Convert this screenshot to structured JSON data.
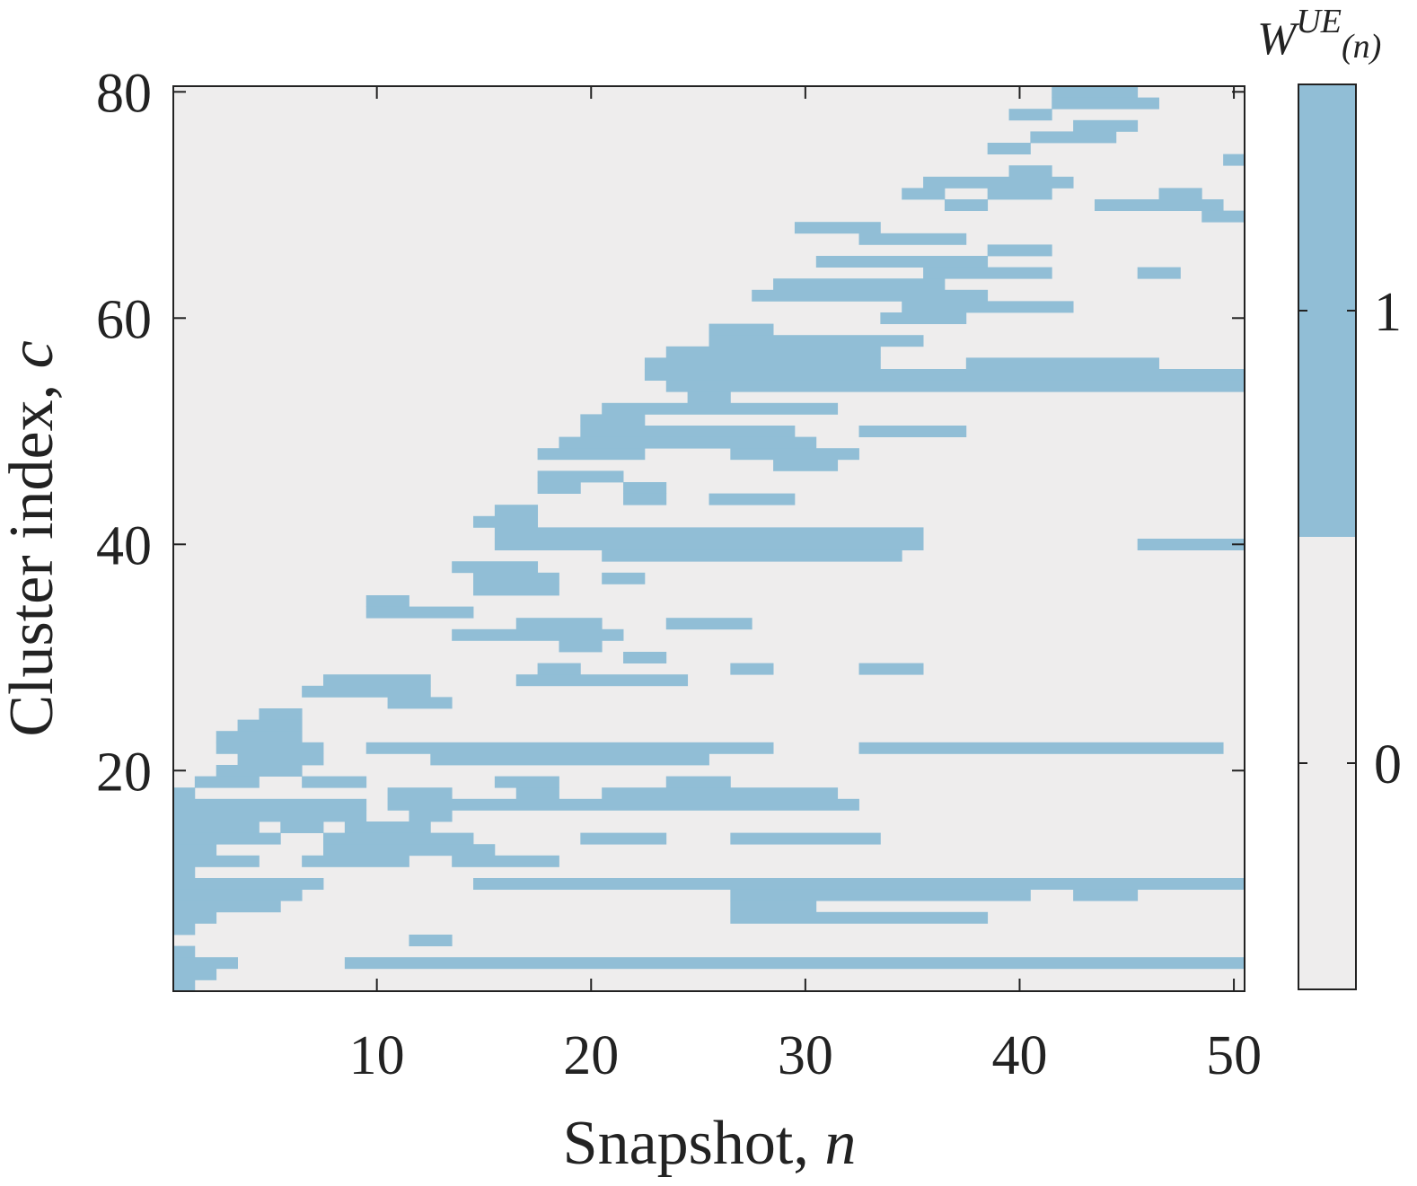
{
  "chart_data": {
    "type": "heatmap",
    "title": "",
    "xlabel": "Snapshot, ",
    "xlabel_var": "n",
    "ylabel": "Cluster index, ",
    "ylabel_var": "c",
    "x_range": [
      1,
      50
    ],
    "y_range": [
      1,
      80
    ],
    "x_ticks": [
      10,
      20,
      30,
      40,
      50
    ],
    "y_ticks": [
      20,
      40,
      60,
      80
    ],
    "colorbar": {
      "label_base": "W",
      "label_sup": "UE",
      "label_arg": "(n)",
      "ticks": [
        0,
        1
      ],
      "levels": [
        0,
        1
      ]
    },
    "colors": {
      "zero": "#eeeded",
      "one": "#91bed6",
      "axis": "#222222"
    },
    "active_cells": [
      {
        "row": 80,
        "runs": [
          [
            42,
            45
          ]
        ]
      },
      {
        "row": 79,
        "runs": [
          [
            42,
            46
          ]
        ]
      },
      {
        "row": 78,
        "runs": [
          [
            40,
            41
          ]
        ]
      },
      {
        "row": 77,
        "runs": [
          [
            43,
            45
          ]
        ]
      },
      {
        "row": 76,
        "runs": [
          [
            41,
            44
          ]
        ]
      },
      {
        "row": 75,
        "runs": [
          [
            39,
            40
          ]
        ]
      },
      {
        "row": 74,
        "runs": [
          [
            50,
            50
          ]
        ]
      },
      {
        "row": 73,
        "runs": [
          [
            40,
            41
          ]
        ]
      },
      {
        "row": 72,
        "runs": [
          [
            36,
            42
          ]
        ]
      },
      {
        "row": 71,
        "runs": [
          [
            35,
            36
          ],
          [
            39,
            41
          ],
          [
            47,
            48
          ]
        ]
      },
      {
        "row": 70,
        "runs": [
          [
            37,
            38
          ],
          [
            44,
            49
          ]
        ]
      },
      {
        "row": 69,
        "runs": [
          [
            49,
            50
          ]
        ]
      },
      {
        "row": 68,
        "runs": [
          [
            30,
            33
          ]
        ]
      },
      {
        "row": 67,
        "runs": [
          [
            33,
            37
          ]
        ]
      },
      {
        "row": 66,
        "runs": [
          [
            39,
            41
          ]
        ]
      },
      {
        "row": 65,
        "runs": [
          [
            31,
            38
          ]
        ]
      },
      {
        "row": 64,
        "runs": [
          [
            36,
            41
          ],
          [
            46,
            47
          ]
        ]
      },
      {
        "row": 63,
        "runs": [
          [
            29,
            36
          ]
        ]
      },
      {
        "row": 62,
        "runs": [
          [
            28,
            38
          ]
        ]
      },
      {
        "row": 61,
        "runs": [
          [
            35,
            42
          ]
        ]
      },
      {
        "row": 60,
        "runs": [
          [
            34,
            37
          ]
        ]
      },
      {
        "row": 59,
        "runs": [
          [
            26,
            28
          ]
        ]
      },
      {
        "row": 58,
        "runs": [
          [
            26,
            35
          ]
        ]
      },
      {
        "row": 57,
        "runs": [
          [
            24,
            33
          ]
        ]
      },
      {
        "row": 56,
        "runs": [
          [
            23,
            33
          ],
          [
            38,
            46
          ]
        ]
      },
      {
        "row": 55,
        "runs": [
          [
            23,
            50
          ]
        ]
      },
      {
        "row": 54,
        "runs": [
          [
            24,
            50
          ]
        ]
      },
      {
        "row": 53,
        "runs": [
          [
            25,
            26
          ]
        ]
      },
      {
        "row": 52,
        "runs": [
          [
            21,
            31
          ]
        ]
      },
      {
        "row": 51,
        "runs": [
          [
            20,
            22
          ]
        ]
      },
      {
        "row": 50,
        "runs": [
          [
            20,
            29
          ],
          [
            33,
            37
          ]
        ]
      },
      {
        "row": 49,
        "runs": [
          [
            19,
            30
          ]
        ]
      },
      {
        "row": 48,
        "runs": [
          [
            18,
            22
          ],
          [
            27,
            32
          ]
        ]
      },
      {
        "row": 47,
        "runs": [
          [
            29,
            31
          ]
        ]
      },
      {
        "row": 46,
        "runs": [
          [
            18,
            21
          ]
        ]
      },
      {
        "row": 45,
        "runs": [
          [
            18,
            19
          ],
          [
            22,
            23
          ]
        ]
      },
      {
        "row": 44,
        "runs": [
          [
            22,
            23
          ],
          [
            26,
            29
          ]
        ]
      },
      {
        "row": 43,
        "runs": [
          [
            16,
            17
          ]
        ]
      },
      {
        "row": 42,
        "runs": [
          [
            15,
            17
          ]
        ]
      },
      {
        "row": 41,
        "runs": [
          [
            16,
            35
          ]
        ]
      },
      {
        "row": 40,
        "runs": [
          [
            16,
            35
          ],
          [
            46,
            50
          ]
        ]
      },
      {
        "row": 39,
        "runs": [
          [
            21,
            34
          ]
        ]
      },
      {
        "row": 38,
        "runs": [
          [
            14,
            17
          ]
        ]
      },
      {
        "row": 37,
        "runs": [
          [
            15,
            18
          ],
          [
            21,
            22
          ]
        ]
      },
      {
        "row": 36,
        "runs": [
          [
            15,
            18
          ]
        ]
      },
      {
        "row": 35,
        "runs": [
          [
            10,
            11
          ]
        ]
      },
      {
        "row": 34,
        "runs": [
          [
            10,
            14
          ]
        ]
      },
      {
        "row": 33,
        "runs": [
          [
            17,
            20
          ],
          [
            24,
            27
          ]
        ]
      },
      {
        "row": 32,
        "runs": [
          [
            14,
            21
          ]
        ]
      },
      {
        "row": 31,
        "runs": [
          [
            19,
            20
          ]
        ]
      },
      {
        "row": 30,
        "runs": [
          [
            22,
            23
          ]
        ]
      },
      {
        "row": 29,
        "runs": [
          [
            18,
            19
          ],
          [
            27,
            28
          ],
          [
            33,
            35
          ]
        ]
      },
      {
        "row": 28,
        "runs": [
          [
            8,
            12
          ],
          [
            17,
            24
          ]
        ]
      },
      {
        "row": 27,
        "runs": [
          [
            7,
            12
          ]
        ]
      },
      {
        "row": 26,
        "runs": [
          [
            11,
            13
          ]
        ]
      },
      {
        "row": 25,
        "runs": [
          [
            5,
            6
          ]
        ]
      },
      {
        "row": 24,
        "runs": [
          [
            4,
            6
          ]
        ]
      },
      {
        "row": 23,
        "runs": [
          [
            3,
            6
          ]
        ]
      },
      {
        "row": 22,
        "runs": [
          [
            3,
            7
          ],
          [
            10,
            28
          ],
          [
            33,
            49
          ]
        ]
      },
      {
        "row": 21,
        "runs": [
          [
            4,
            7
          ],
          [
            13,
            25
          ]
        ]
      },
      {
        "row": 20,
        "runs": [
          [
            3,
            6
          ]
        ]
      },
      {
        "row": 19,
        "runs": [
          [
            2,
            4
          ],
          [
            7,
            9
          ],
          [
            16,
            18
          ],
          [
            24,
            26
          ]
        ]
      },
      {
        "row": 18,
        "runs": [
          [
            1,
            1
          ],
          [
            11,
            13
          ],
          [
            17,
            18
          ],
          [
            21,
            31
          ]
        ]
      },
      {
        "row": 17,
        "runs": [
          [
            1,
            9
          ],
          [
            11,
            32
          ]
        ]
      },
      {
        "row": 16,
        "runs": [
          [
            1,
            9
          ],
          [
            12,
            13
          ]
        ]
      },
      {
        "row": 15,
        "runs": [
          [
            1,
            4
          ],
          [
            6,
            7
          ],
          [
            9,
            12
          ]
        ]
      },
      {
        "row": 14,
        "runs": [
          [
            1,
            5
          ],
          [
            8,
            14
          ],
          [
            20,
            23
          ],
          [
            27,
            33
          ]
        ]
      },
      {
        "row": 13,
        "runs": [
          [
            1,
            2
          ],
          [
            8,
            15
          ]
        ]
      },
      {
        "row": 12,
        "runs": [
          [
            1,
            4
          ],
          [
            7,
            11
          ],
          [
            14,
            18
          ]
        ]
      },
      {
        "row": 11,
        "runs": [
          [
            1,
            1
          ]
        ]
      },
      {
        "row": 10,
        "runs": [
          [
            1,
            7
          ],
          [
            15,
            50
          ]
        ]
      },
      {
        "row": 9,
        "runs": [
          [
            1,
            6
          ],
          [
            27,
            40
          ],
          [
            43,
            45
          ]
        ]
      },
      {
        "row": 8,
        "runs": [
          [
            1,
            5
          ],
          [
            27,
            30
          ]
        ]
      },
      {
        "row": 7,
        "runs": [
          [
            1,
            2
          ],
          [
            27,
            38
          ]
        ]
      },
      {
        "row": 6,
        "runs": [
          [
            1,
            1
          ]
        ]
      },
      {
        "row": 5,
        "runs": [
          [
            12,
            13
          ]
        ]
      },
      {
        "row": 4,
        "runs": [
          [
            1,
            1
          ]
        ]
      },
      {
        "row": 3,
        "runs": [
          [
            1,
            3
          ],
          [
            9,
            50
          ]
        ]
      },
      {
        "row": 2,
        "runs": [
          [
            1,
            2
          ]
        ]
      },
      {
        "row": 1,
        "runs": [
          [
            1,
            1
          ]
        ]
      }
    ]
  }
}
